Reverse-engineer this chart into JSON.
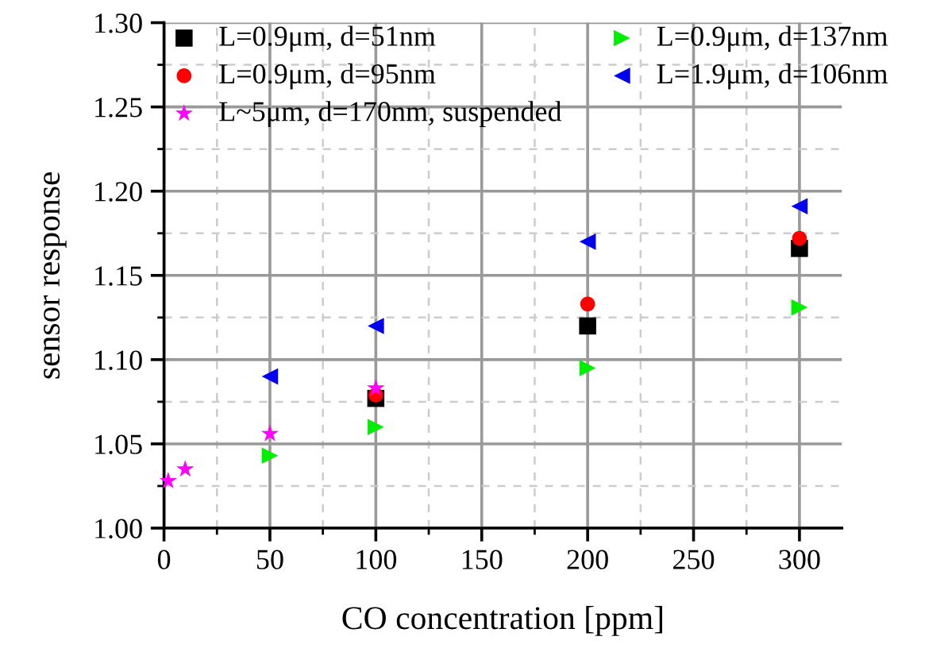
{
  "chart_data": {
    "type": "scatter",
    "xlabel": "CO concentration [ppm]",
    "ylabel": "sensor response",
    "xlim": [
      0,
      320
    ],
    "xticks": [
      0,
      50,
      100,
      150,
      200,
      250,
      300
    ],
    "ylim": [
      1.0,
      1.3
    ],
    "yticks": [
      {
        "value": 1.0,
        "label": "1.00"
      },
      {
        "value": 1.05,
        "label": "1.05"
      },
      {
        "value": 1.1,
        "label": "1.10"
      },
      {
        "value": 1.15,
        "label": "1.15"
      },
      {
        "value": 1.2,
        "label": "1.20"
      },
      {
        "value": 1.25,
        "label": "1.25"
      },
      {
        "value": 1.3,
        "label": "1.30"
      }
    ],
    "grid": true,
    "legend": "top left",
    "series": [
      {
        "name": "L=0.9μm, d=51nm",
        "color": "#000000",
        "marker": "square",
        "x": [
          100,
          200,
          300
        ],
        "values": [
          1.077,
          1.12,
          1.166
        ]
      },
      {
        "name": "L=0.9μm, d=95nm",
        "color": "#ff0000",
        "marker": "circle",
        "x": [
          100,
          200,
          300
        ],
        "values": [
          1.079,
          1.133,
          1.172
        ]
      },
      {
        "name": "L~5μm, d=170nm, suspended",
        "color": "#ff00ff",
        "marker": "star",
        "x": [
          2,
          10,
          50,
          100
        ],
        "values": [
          1.028,
          1.035,
          1.056,
          1.083
        ]
      },
      {
        "name": "L=0.9μm, d=137nm",
        "color": "#00ee00",
        "marker": "triangle_right",
        "x": [
          50,
          100,
          200,
          300
        ],
        "values": [
          1.043,
          1.06,
          1.095,
          1.131
        ]
      },
      {
        "name": "L=1.9μm, d=106nm",
        "color": "#0000ee",
        "marker": "triangle_left",
        "x": [
          50,
          100,
          200,
          300
        ],
        "values": [
          1.09,
          1.12,
          1.17,
          1.191
        ]
      }
    ]
  }
}
